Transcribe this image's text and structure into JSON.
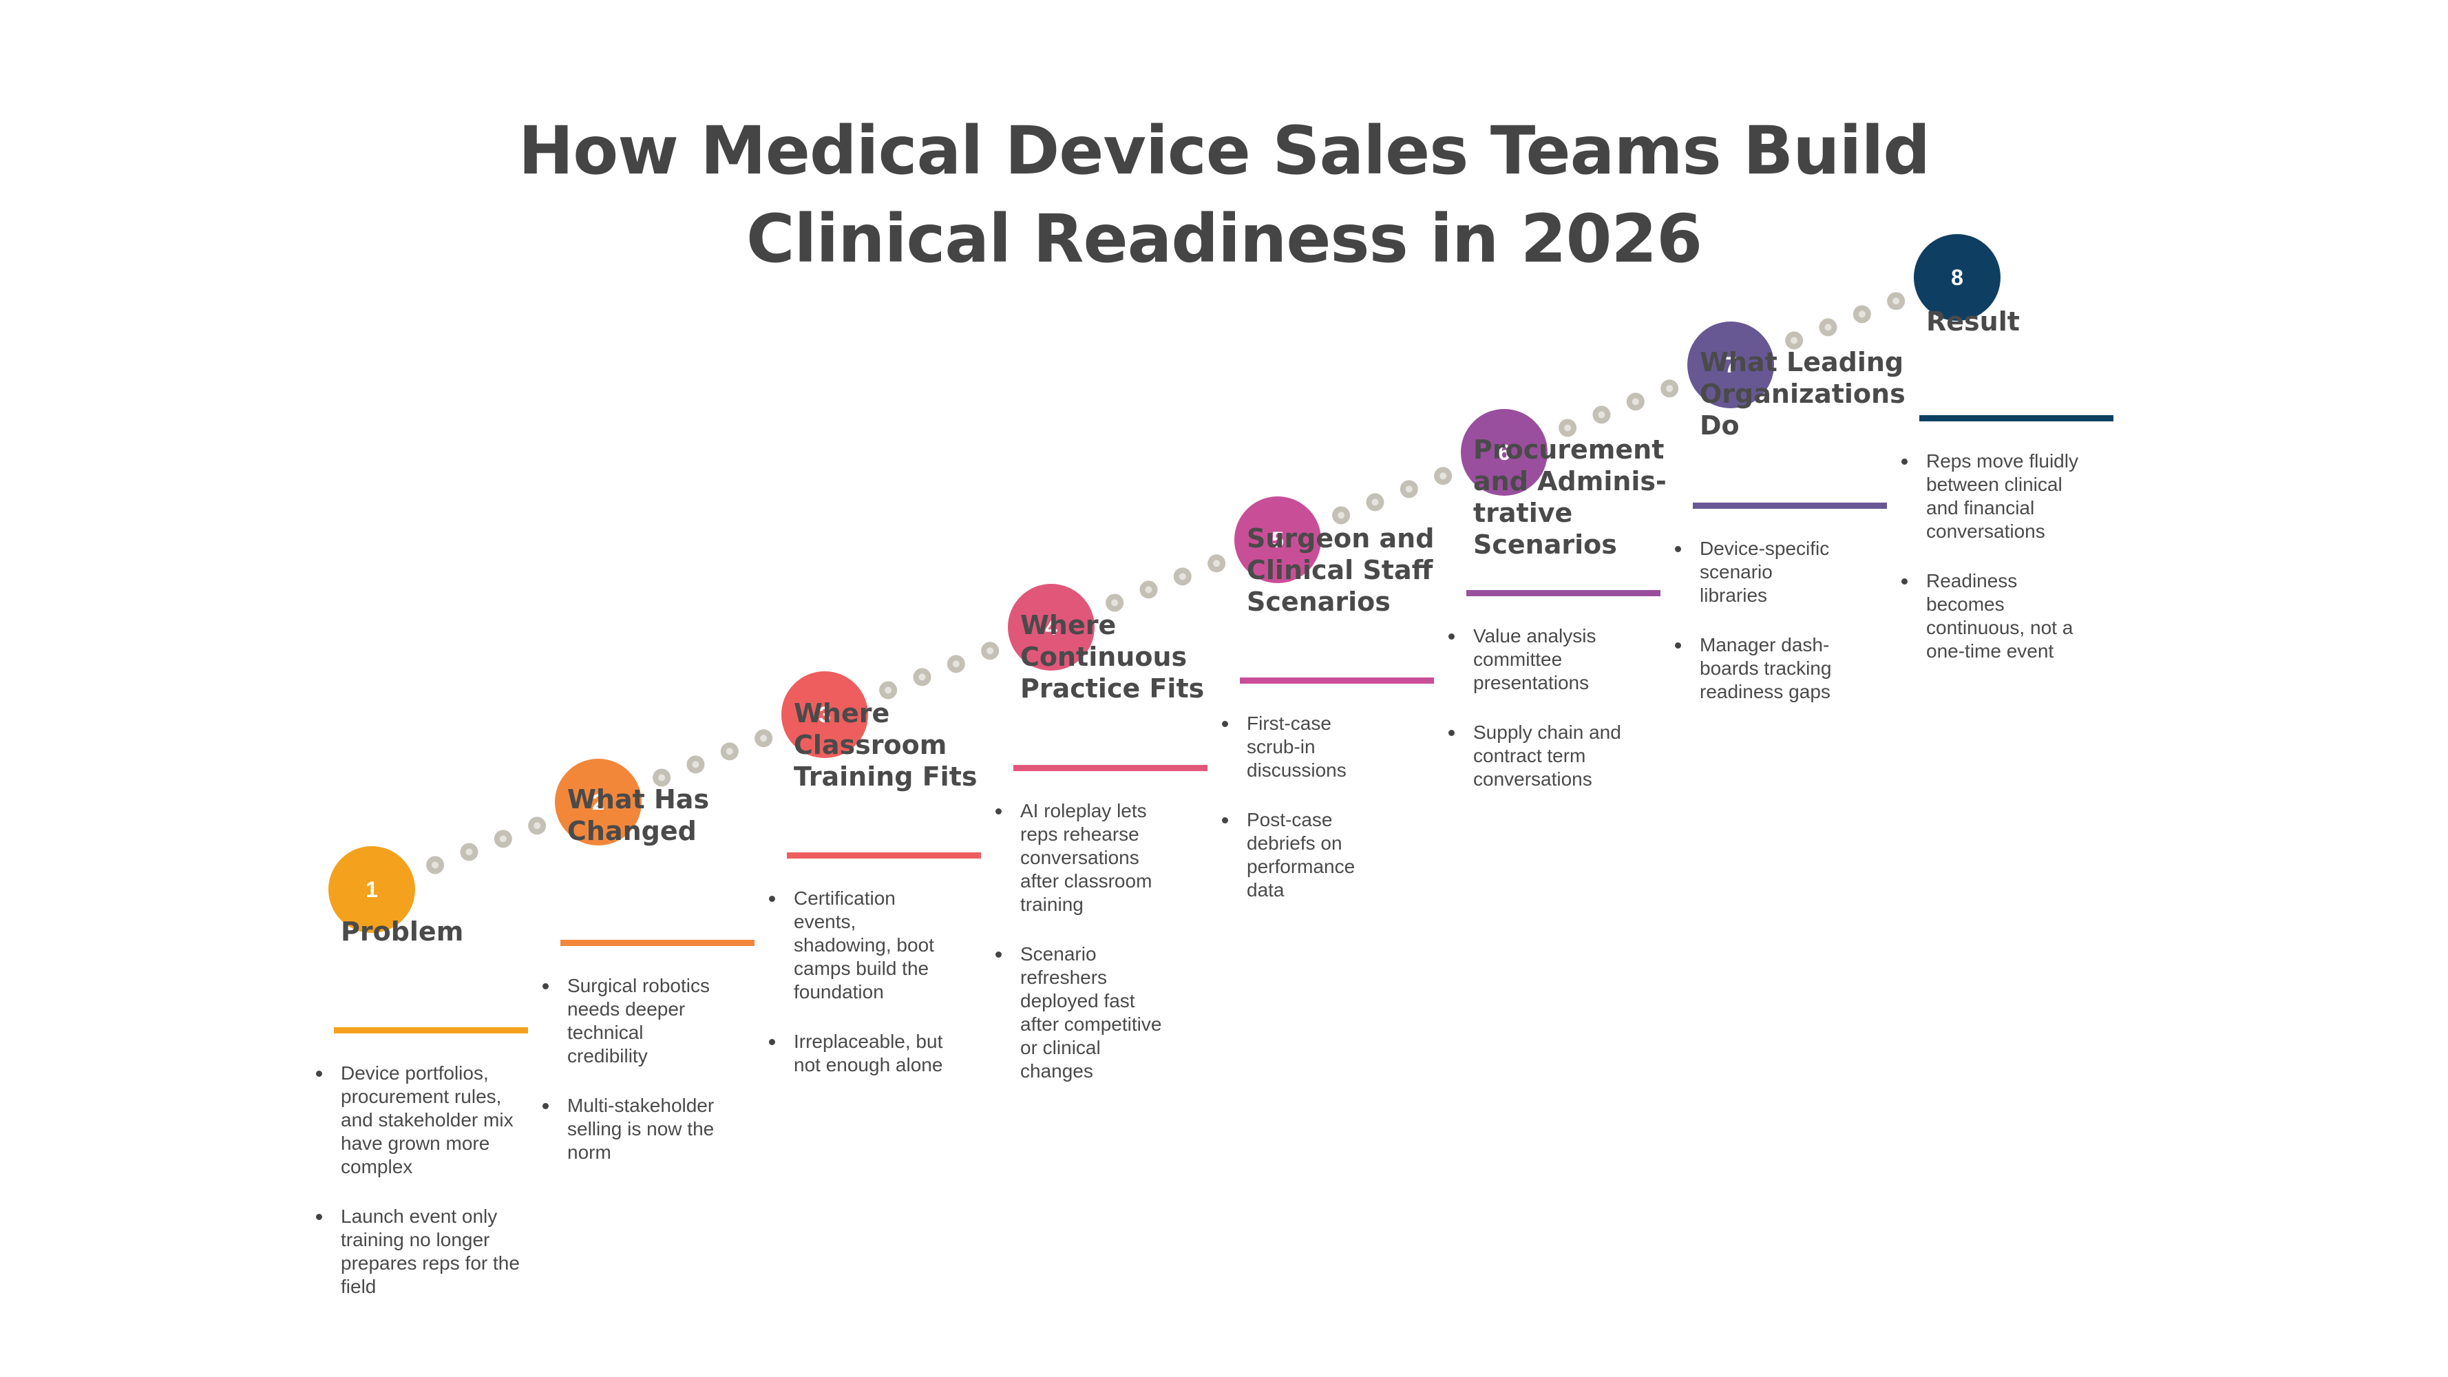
{
  "title": {
    "line1": "How Medical Device Sales Teams Build",
    "line2": "Clinical Readiness in 2026"
  },
  "steps": [
    {
      "number": "1",
      "color": "#F4A21D",
      "heading": "Problem",
      "bullets": [
        "Device portfolios, procurement rules, and stakeholder mix have grown more complex",
        "Launch event only training no longer prepares reps for the field"
      ]
    },
    {
      "number": "2",
      "color": "#F2873A",
      "heading": "What Has Changed",
      "bullets": [
        "Surgical robotics needs deeper technical credibility",
        "Multi-stakeholder selling is now the norm"
      ]
    },
    {
      "number": "3",
      "color": "#EE5E5E",
      "heading": "Where Classroom Training Fits",
      "bullets": [
        "Certification events, shadowing, boot camps build the foundation",
        "Irreplaceable, but not enough alone"
      ]
    },
    {
      "number": "4",
      "color": "#E0577A",
      "heading": "Where Continuous Practice Fits",
      "bullets": [
        "AI roleplay lets reps rehearse conversations after classroom training",
        "Scenario refreshers deployed fast after competitive or clinical changes"
      ]
    },
    {
      "number": "5",
      "color": "#C94E98",
      "heading": "Surgeon and Clinical Staff Scenarios",
      "bullets": [
        "First-case scrub-in discussions",
        "Post-case debriefs on performance data"
      ]
    },
    {
      "number": "6",
      "color": "#9A4F9E",
      "heading": "Procurement and Adminis-trative Scenarios",
      "bullets": [
        "Value analysis committee presentations",
        "Supply chain and contract term conversations"
      ]
    },
    {
      "number": "7",
      "color": "#675894",
      "heading": "What Leading Organizations Do",
      "bullets": [
        "Device-specific scenario libraries",
        "Manager dash-boards tracking readiness gaps"
      ]
    },
    {
      "number": "8",
      "color": "#0E3F62",
      "heading": "Result",
      "bullets": [
        "Reps move fluidly between clinical and financial conversations",
        "Readiness becomes continuous, not a one-time event"
      ]
    }
  ],
  "connector_dot_color": "#C4C0B6"
}
